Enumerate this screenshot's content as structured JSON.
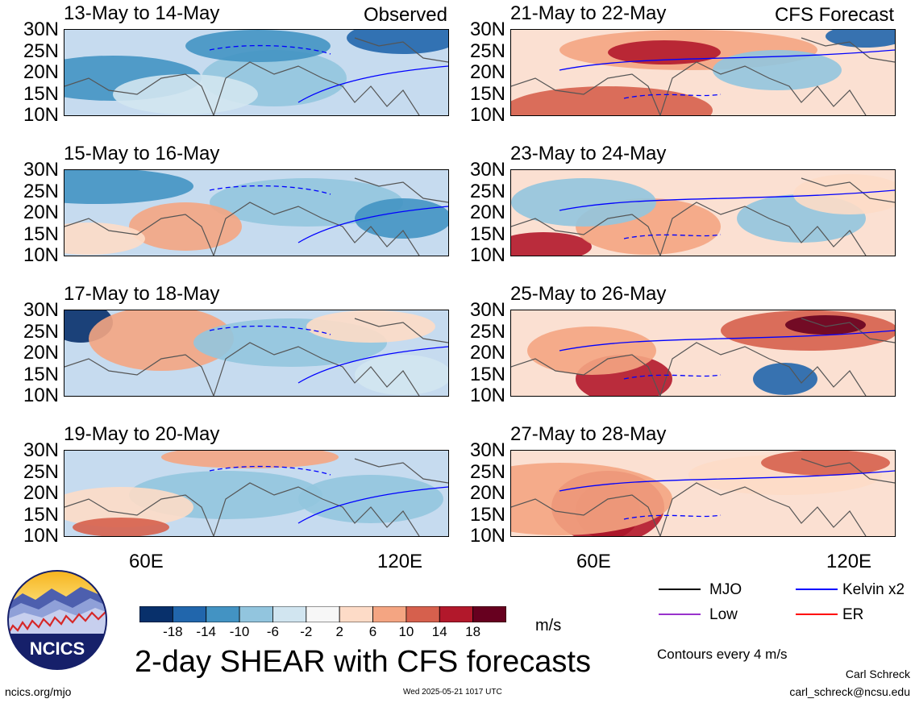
{
  "panels": [
    {
      "title": "13-May to 14-May",
      "tag": "Observed",
      "kind": "obs1"
    },
    {
      "title": "15-May to 16-May",
      "tag": "",
      "kind": "obs2"
    },
    {
      "title": "17-May to 18-May",
      "tag": "",
      "kind": "obs3"
    },
    {
      "title": "19-May to 20-May",
      "tag": "",
      "kind": "obs4"
    },
    {
      "title": "21-May to 22-May",
      "tag": "CFS Forecast",
      "kind": "fc1"
    },
    {
      "title": "23-May to 24-May",
      "tag": "",
      "kind": "fc2"
    },
    {
      "title": "25-May to 26-May",
      "tag": "",
      "kind": "fc3"
    },
    {
      "title": "27-May to 28-May",
      "tag": "",
      "kind": "fc4"
    }
  ],
  "axes": {
    "y_ticks": [
      "30N",
      "25N",
      "20N",
      "15N",
      "10N"
    ],
    "x_ticks": [
      "60E",
      "120E"
    ]
  },
  "colorbar": {
    "labels": [
      "-18",
      "-14",
      "-10",
      "-6",
      "-2",
      "2",
      "6",
      "10",
      "14",
      "18"
    ],
    "colors": [
      "#08306b",
      "#2166ac",
      "#4393c3",
      "#92c5de",
      "#d1e5f0",
      "#f7f7f7",
      "#fddbc7",
      "#f4a582",
      "#d6604d",
      "#b2182b",
      "#67001f"
    ],
    "unit": "m/s"
  },
  "legend": {
    "items": [
      {
        "label": "MJO",
        "color": "#000000"
      },
      {
        "label": "Kelvin x2",
        "color": "#0000ff"
      },
      {
        "label": "Low",
        "color": "#9932cc"
      },
      {
        "label": "ER",
        "color": "#ff0000"
      }
    ],
    "contours_note": "Contours every 4 m/s"
  },
  "logo": {
    "text": "NCICS"
  },
  "main_title": "2-day SHEAR with CFS forecasts",
  "footer": {
    "url": "ncics.org/mjo",
    "timestamp": "Wed 2025-05-21 1017 UTC",
    "author": "Carl Schreck",
    "email": "carl_schreck@ncsu.edu"
  }
}
